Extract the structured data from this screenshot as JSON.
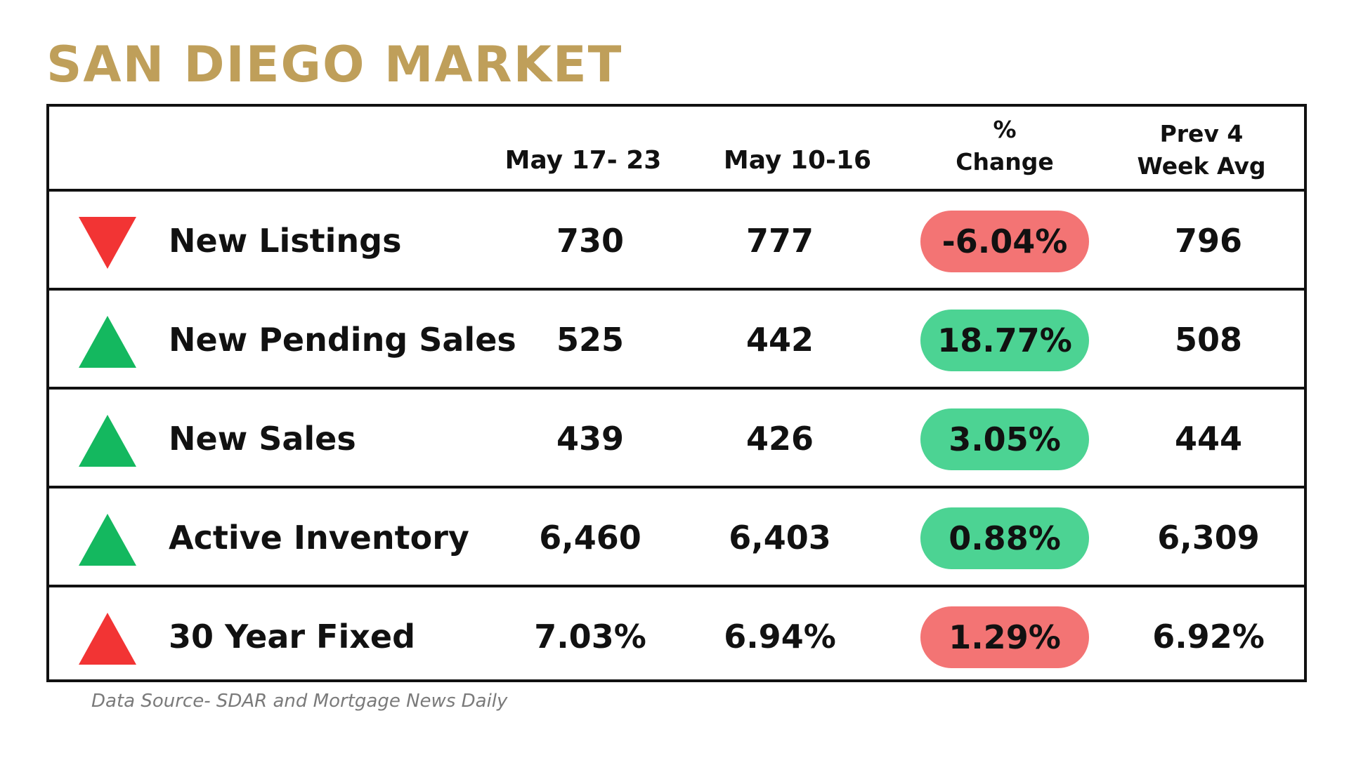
{
  "title": "SAN DIEGO MARKET",
  "colors": {
    "title": "#bf9f5a",
    "up_green": "#14b85f",
    "down_red": "#f23434",
    "pill_green": "#4cd393",
    "pill_red": "#f37474",
    "border": "#111111"
  },
  "headers": {
    "col1": "May 17- 23",
    "col2": "May 10-16",
    "col3_line1": "%",
    "col3_line2": "Change",
    "col4_line1": "Prev 4",
    "col4_line2": "Week Avg"
  },
  "chart_data": {
    "type": "table",
    "columns": [
      "",
      "May 17- 23",
      "May 10-16",
      "% Change",
      "Prev 4 Week Avg"
    ],
    "rows": [
      {
        "label": "New Listings",
        "trend": "down",
        "trend_color": "red",
        "current": "730",
        "previous": "777",
        "change": "-6.04%",
        "change_color": "red",
        "avg": "796"
      },
      {
        "label": "New Pending Sales",
        "trend": "up",
        "trend_color": "green",
        "current": "525",
        "previous": "442",
        "change": "18.77%",
        "change_color": "green",
        "avg": "508"
      },
      {
        "label": "New Sales",
        "trend": "up",
        "trend_color": "green",
        "current": "439",
        "previous": "426",
        "change": "3.05%",
        "change_color": "green",
        "avg": "444"
      },
      {
        "label": "Active Inventory",
        "trend": "up",
        "trend_color": "green",
        "current": "6,460",
        "previous": "6,403",
        "change": "0.88%",
        "change_color": "green",
        "avg": "6,309"
      },
      {
        "label": "30 Year Fixed",
        "trend": "up",
        "trend_color": "red",
        "current": "7.03%",
        "previous": "6.94%",
        "change": "1.29%",
        "change_color": "red",
        "avg": "6.92%"
      }
    ]
  },
  "source": "Data Source- SDAR and Mortgage News Daily"
}
